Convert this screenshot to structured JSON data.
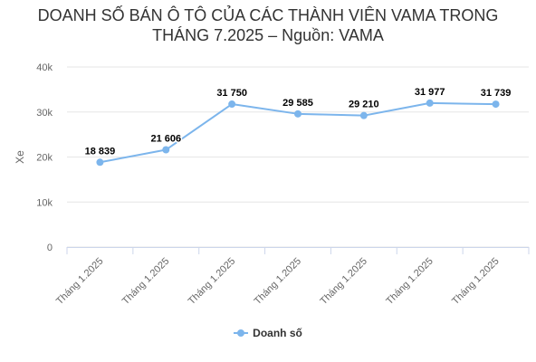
{
  "chart_data": {
    "type": "line",
    "title": "DOANH SỐ BÁN Ô TÔ CỦA CÁC THÀNH VIÊN VAMA TRONG",
    "subtitle": "THÁNG 7.2025 – Nguồn: VAMA",
    "categories": [
      "Tháng 1.2025",
      "Tháng 1.2025",
      "Tháng 1.2025",
      "Tháng 1.2025",
      "Tháng 1.2025",
      "Tháng 1.2025",
      "Tháng 1.2025"
    ],
    "series": [
      {
        "name": "Doanh số",
        "values": [
          18839,
          21606,
          31750,
          29585,
          29210,
          31977,
          31739
        ],
        "labels": [
          "18 839",
          "21 606",
          "31 750",
          "29 585",
          "29 210",
          "31 977",
          "31 739"
        ],
        "color": "#7cb5ec"
      }
    ],
    "xlabel": "",
    "ylabel": "Xe",
    "ylim": [
      0,
      40000
    ],
    "yticks": [
      {
        "value": 0,
        "label": "0"
      },
      {
        "value": 10000,
        "label": "10k"
      },
      {
        "value": 20000,
        "label": "20k"
      },
      {
        "value": 30000,
        "label": "30k"
      },
      {
        "value": 40000,
        "label": "40k"
      }
    ],
    "grid": true,
    "legend_position": "bottom-center"
  }
}
